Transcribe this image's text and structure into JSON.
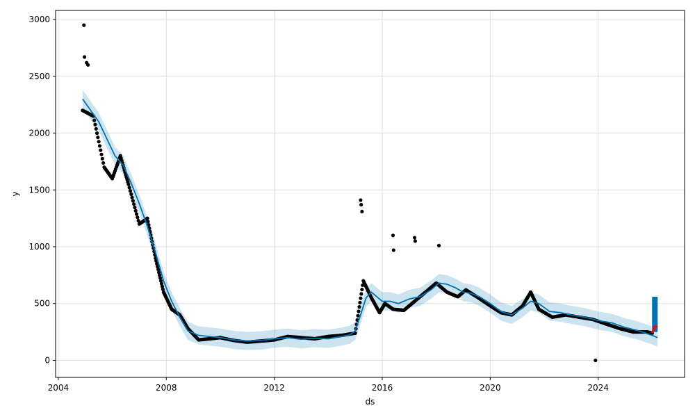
{
  "chart_data": {
    "type": "line",
    "xlabel": "ds",
    "ylabel": "y",
    "xlim": [
      2003.9,
      2027.2
    ],
    "ylim": [
      -150,
      3080
    ],
    "grid": true,
    "x_ticks": [
      2004,
      2008,
      2012,
      2016,
      2020,
      2024
    ],
    "x_tick_labels": [
      "2004",
      "2008",
      "2012",
      "2016",
      "2020",
      "2024"
    ],
    "y_ticks": [
      0,
      500,
      1000,
      1500,
      2000,
      2500,
      3000
    ],
    "y_tick_labels": [
      "0",
      "500",
      "1000",
      "1500",
      "2000",
      "2500",
      "3000"
    ],
    "colors": {
      "observed": "#000000",
      "forecast": "#0072B2",
      "interval": "#0072B2",
      "highlight": "#ff0000",
      "grid": "#dddddd"
    },
    "forecast": {
      "x": [
        2004.9,
        2005.2,
        2005.5,
        2005.8,
        2006.1,
        2006.4,
        2006.7,
        2007.0,
        2007.3,
        2007.6,
        2007.9,
        2008.2,
        2008.5,
        2008.8,
        2009.2,
        2009.6,
        2010.0,
        2010.5,
        2011.0,
        2011.5,
        2012.0,
        2012.5,
        2013.0,
        2013.5,
        2014.0,
        2014.5,
        2014.8,
        2015.0,
        2015.2,
        2015.4,
        2015.6,
        2015.8,
        2016.0,
        2016.3,
        2016.6,
        2017.0,
        2017.4,
        2017.8,
        2018.1,
        2018.4,
        2018.7,
        2019.0,
        2019.3,
        2019.6,
        2020.0,
        2020.4,
        2020.8,
        2021.2,
        2021.5,
        2021.8,
        2022.2,
        2022.6,
        2023.0,
        2023.5,
        2024.0,
        2024.5,
        2025.0,
        2025.5,
        2026.0,
        2026.2
      ],
      "y": [
        2300,
        2200,
        2100,
        1950,
        1800,
        1720,
        1560,
        1380,
        1180,
        950,
        700,
        520,
        380,
        260,
        220,
        210,
        200,
        180,
        170,
        175,
        190,
        200,
        185,
        195,
        190,
        210,
        225,
        260,
        400,
        550,
        600,
        560,
        520,
        520,
        500,
        540,
        560,
        620,
        680,
        670,
        640,
        600,
        590,
        560,
        500,
        430,
        400,
        460,
        520,
        500,
        430,
        420,
        400,
        380,
        350,
        330,
        290,
        260,
        220,
        200
      ],
      "interval_halfwidth": 80
    },
    "observed_summary": {
      "x": [
        2004.9,
        2005.3,
        2005.7,
        2006.0,
        2006.3,
        2006.6,
        2007.0,
        2007.3,
        2007.6,
        2007.9,
        2008.2,
        2008.5,
        2008.8,
        2009.2,
        2009.6,
        2010.0,
        2010.5,
        2011.0,
        2011.5,
        2012.0,
        2012.5,
        2013.0,
        2013.5,
        2014.0,
        2014.5,
        2015.0,
        2015.3,
        2015.6,
        2015.9,
        2016.1,
        2016.4,
        2016.8,
        2017.2,
        2017.6,
        2018.0,
        2018.4,
        2018.8,
        2019.1,
        2019.5,
        2020.0,
        2020.4,
        2020.8,
        2021.2,
        2021.5,
        2021.8,
        2022.3,
        2022.8,
        2023.3,
        2023.8,
        2024.3,
        2024.8,
        2025.3,
        2025.8,
        2026.0
      ],
      "y": [
        2200,
        2150,
        1700,
        1600,
        1800,
        1550,
        1200,
        1250,
        900,
        600,
        450,
        400,
        280,
        180,
        190,
        200,
        175,
        160,
        170,
        180,
        210,
        200,
        190,
        210,
        220,
        240,
        700,
        550,
        420,
        500,
        450,
        440,
        520,
        600,
        680,
        600,
        560,
        620,
        560,
        480,
        420,
        400,
        480,
        600,
        450,
        380,
        400,
        380,
        360,
        320,
        280,
        250,
        250,
        240
      ]
    },
    "outliers": {
      "x": [
        2004.95,
        2004.97,
        2005.05,
        2005.1,
        2015.2,
        2015.22,
        2015.25,
        2016.4,
        2016.42,
        2017.2,
        2017.22,
        2018.1,
        2023.9
      ],
      "y": [
        2950,
        2670,
        2620,
        2600,
        1410,
        1370,
        1310,
        1100,
        970,
        1080,
        1050,
        1010,
        0
      ]
    },
    "highlight_segment": {
      "x": [
        2026.0,
        2026.1,
        2026.2
      ],
      "y": [
        240,
        300,
        290
      ]
    },
    "forecast_band_end": {
      "x": 2026.1,
      "y_low": 250,
      "y_high": 560
    }
  }
}
